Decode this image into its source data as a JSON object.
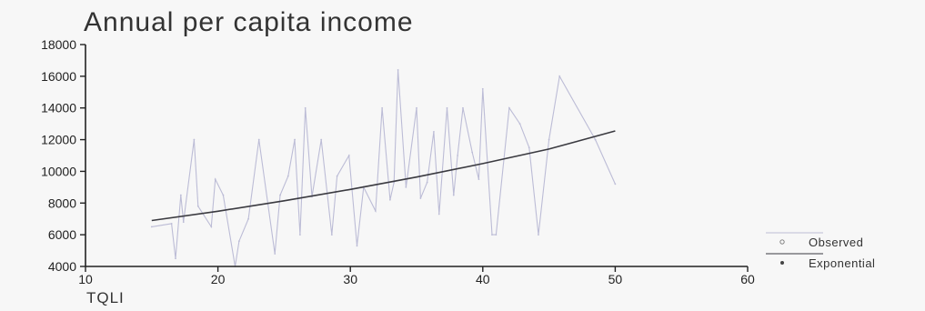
{
  "chart_data": {
    "type": "line",
    "title": "Annual per capita income",
    "xlabel": "TQLI",
    "ylabel": "",
    "xlim": [
      10,
      60
    ],
    "ylim": [
      4000,
      18000
    ],
    "xticks": [
      "10",
      "20",
      "30",
      "40",
      "50",
      "60"
    ],
    "yticks": [
      "4000",
      "6000",
      "8000",
      "10000",
      "12000",
      "14000",
      "16000",
      "18000"
    ],
    "grid": false,
    "legend_position": "bottom-right",
    "colors": {
      "observed": "#bcbcd6",
      "exponential": "#3a3a40",
      "axis": "#222222"
    },
    "series": [
      {
        "name": "Observed",
        "style": "line",
        "x": [
          15,
          16.5,
          16.8,
          17.2,
          17.4,
          18.2,
          18.5,
          19.5,
          19.8,
          20.4,
          21.3,
          21.6,
          22.3,
          23.1,
          24.3,
          24.7,
          25.3,
          25.8,
          26.2,
          26.6,
          27.1,
          27.8,
          28.6,
          29.0,
          29.9,
          30.5,
          31.0,
          31.9,
          32.4,
          33.0,
          33.3,
          33.6,
          34.2,
          35.0,
          35.3,
          35.8,
          36.3,
          36.7,
          37.3,
          37.8,
          38.1,
          38.5,
          39.2,
          39.7,
          40.0,
          40.7,
          41.0,
          42.0,
          42.8,
          43.5,
          44.2,
          45.0,
          45.8,
          48.5,
          50.0
        ],
        "y": [
          6500,
          6700,
          4500,
          8500,
          6800,
          12000,
          7800,
          6500,
          9500,
          8500,
          4000,
          5600,
          7000,
          12000,
          4800,
          8500,
          9700,
          12000,
          6000,
          14000,
          8400,
          12000,
          6000,
          9700,
          11000,
          5300,
          9000,
          7500,
          14000,
          8200,
          9300,
          16400,
          9000,
          14000,
          8300,
          9300,
          12500,
          7300,
          14000,
          8500,
          11000,
          14000,
          11200,
          9500,
          15200,
          6000,
          6000,
          14000,
          13000,
          11500,
          6000,
          12000,
          16000,
          12000,
          9200
        ]
      },
      {
        "name": "Exponential",
        "style": "line",
        "x": [
          15,
          20,
          25,
          30,
          35,
          40,
          45,
          50
        ],
        "y": [
          6900,
          7480,
          8140,
          8860,
          9640,
          10490,
          11410,
          12550
        ]
      }
    ]
  }
}
